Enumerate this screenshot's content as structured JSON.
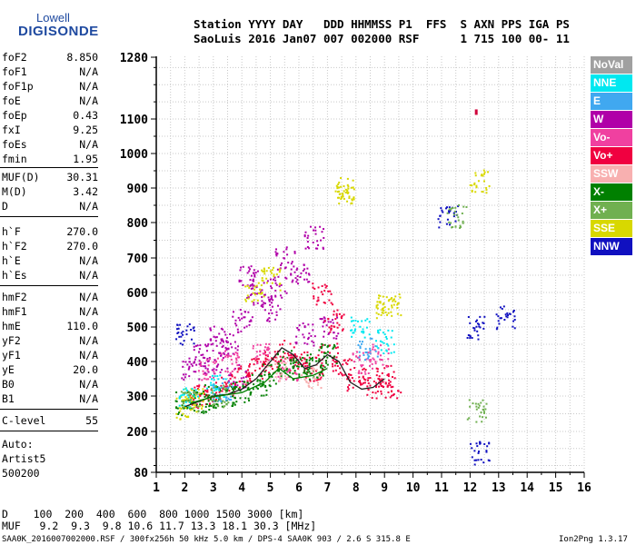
{
  "logo": {
    "line1": "Lowell",
    "line2": "DIGISONDE"
  },
  "header": {
    "row1": "Station YYYY DAY   DDD HHMMSS P1  FFS  S AXN PPS IGA PS",
    "row2": "SaoLuis 2016 Jan07 007 002000 RSF      1 715 100 00- 11"
  },
  "params": [
    {
      "k": "foF2",
      "v": "8.850"
    },
    {
      "k": "foF1",
      "v": "N/A"
    },
    {
      "k": "foF1p",
      "v": "N/A"
    },
    {
      "k": "foE",
      "v": "N/A"
    },
    {
      "k": "foEp",
      "v": "0.43"
    },
    {
      "k": "fxI",
      "v": "9.25"
    },
    {
      "k": "foEs",
      "v": "N/A"
    },
    {
      "k": "fmin",
      "v": "1.95"
    },
    {
      "k": "MUF(D)",
      "v": "30.31"
    },
    {
      "k": "M(D)",
      "v": "3.42"
    },
    {
      "k": "D",
      "v": "N/A"
    },
    {
      "k": "h`F",
      "v": "270.0"
    },
    {
      "k": "h`F2",
      "v": "270.0"
    },
    {
      "k": "h`E",
      "v": "N/A"
    },
    {
      "k": "h`Es",
      "v": "N/A"
    },
    {
      "k": "hmF2",
      "v": "N/A"
    },
    {
      "k": "hmF1",
      "v": "N/A"
    },
    {
      "k": "hmE",
      "v": "110.0"
    },
    {
      "k": "yF2",
      "v": "N/A"
    },
    {
      "k": "yF1",
      "v": "N/A"
    },
    {
      "k": "yE",
      "v": "20.0"
    },
    {
      "k": "B0",
      "v": "N/A"
    },
    {
      "k": "B1",
      "v": "N/A"
    },
    {
      "k": "C-level",
      "v": "55"
    }
  ],
  "auto": {
    "line1": "Auto:",
    "line2": "Artist5",
    "line3": "500200"
  },
  "legend": [
    {
      "label": "NoVal",
      "color": "#a0a0a0"
    },
    {
      "label": "NNE",
      "color": "#00e8f0"
    },
    {
      "label": "E",
      "color": "#40a8f0"
    },
    {
      "label": "W",
      "color": "#b000a8"
    },
    {
      "label": "Vo-",
      "color": "#f040a0"
    },
    {
      "label": "Vo+",
      "color": "#f00040"
    },
    {
      "label": "SSW",
      "color": "#f8b0b0"
    },
    {
      "label": "X-",
      "color": "#008000"
    },
    {
      "label": "X+",
      "color": "#70b050"
    },
    {
      "label": "SSE",
      "color": "#d8d800"
    },
    {
      "label": "NNW",
      "color": "#1010c0"
    }
  ],
  "bottom": {
    "row1": "D    100  200  400  600  800 1000 1500 3000 [km]",
    "row2": "MUF   9.2  9.3  9.8 10.6 11.7 13.3 18.1 30.3 [MHz]"
  },
  "footer": {
    "left": "SAA0K_2016007002000.RSF / 300fx256h 50 kHz 5.0 km / DPS-4 SAA0K 903 / 2.6 S 315.8 E",
    "right": "Ion2Png 1.3.17"
  },
  "chart_data": {
    "type": "scatter",
    "title": "",
    "xlabel": "",
    "ylabel": "",
    "xlim": [
      1,
      16
    ],
    "ylim": [
      80,
      1280
    ],
    "xticks": [
      1,
      2,
      3,
      4,
      5,
      6,
      7,
      8,
      9,
      10,
      11,
      12,
      13,
      14,
      15,
      16
    ],
    "yticks": [
      80,
      200,
      300,
      400,
      500,
      600,
      700,
      800,
      900,
      1000,
      1100,
      1280
    ],
    "grid": true,
    "y_scale": "nonlinear",
    "series": [
      {
        "name": "W",
        "color": "#b000a8",
        "points": [
          [
            2.2,
            380
          ],
          [
            3,
            400
          ],
          [
            3.5,
            450
          ],
          [
            4,
            520
          ],
          [
            4.5,
            600
          ],
          [
            5,
            550
          ],
          [
            5.5,
            700
          ],
          [
            6,
            650
          ],
          [
            6.5,
            760
          ],
          [
            7,
            500
          ],
          [
            3.2,
            470
          ],
          [
            2.6,
            420
          ],
          [
            4.2,
            650
          ],
          [
            5.2,
            620
          ],
          [
            6.2,
            480
          ],
          [
            3.8,
            360
          ]
        ]
      },
      {
        "name": "Vo+",
        "color": "#f00040",
        "points": [
          [
            2.5,
            300
          ],
          [
            3,
            310
          ],
          [
            3.5,
            330
          ],
          [
            4,
            360
          ],
          [
            4.5,
            380
          ],
          [
            5,
            400
          ],
          [
            5.5,
            430
          ],
          [
            6,
            400
          ],
          [
            6.5,
            380
          ],
          [
            7,
            420
          ],
          [
            7.5,
            380
          ],
          [
            8,
            350
          ],
          [
            8.5,
            330
          ],
          [
            9,
            360
          ],
          [
            9.2,
            330
          ],
          [
            7.2,
            520
          ],
          [
            6.8,
            600
          ]
        ]
      },
      {
        "name": "Vo-",
        "color": "#f040a0",
        "points": [
          [
            2.8,
            380
          ],
          [
            3.6,
            400
          ],
          [
            4.6,
            420
          ],
          [
            5.6,
            380
          ],
          [
            8.2,
            400
          ],
          [
            8.8,
            420
          ]
        ]
      },
      {
        "name": "X-",
        "color": "#008000",
        "points": [
          [
            2,
            280
          ],
          [
            2.5,
            285
          ],
          [
            3,
            300
          ],
          [
            3.5,
            305
          ],
          [
            4,
            310
          ],
          [
            4.5,
            330
          ],
          [
            5,
            360
          ],
          [
            5.5,
            400
          ],
          [
            6,
            380
          ],
          [
            6.5,
            390
          ],
          [
            7,
            420
          ]
        ]
      },
      {
        "name": "SSE",
        "color": "#d8d800",
        "points": [
          [
            2,
            270
          ],
          [
            2.3,
            290
          ],
          [
            7.5,
            880
          ],
          [
            7.6,
            900
          ],
          [
            9,
            560
          ],
          [
            9.2,
            565
          ],
          [
            4.4,
            610
          ],
          [
            5,
            640
          ],
          [
            12.3,
            920
          ]
        ]
      },
      {
        "name": "NNE",
        "color": "#00e8f0",
        "points": [
          [
            2.1,
            300
          ],
          [
            3.1,
            330
          ],
          [
            8.1,
            500
          ],
          [
            9,
            460
          ]
        ]
      },
      {
        "name": "E",
        "color": "#40a8f0",
        "points": [
          [
            3.3,
            320
          ],
          [
            8.4,
            440
          ]
        ]
      },
      {
        "name": "NNW",
        "color": "#1010c0",
        "points": [
          [
            2,
            480
          ],
          [
            11.2,
            820
          ],
          [
            12.2,
            500
          ],
          [
            12.3,
            140
          ],
          [
            13.2,
            530
          ]
        ]
      },
      {
        "name": "X+",
        "color": "#70b050",
        "points": [
          [
            2.2,
            290
          ],
          [
            3.2,
            300
          ],
          [
            11.5,
            820
          ],
          [
            12.2,
            260
          ]
        ]
      },
      {
        "name": "SSW",
        "color": "#f8b0b0",
        "points": [
          [
            5.2,
            380
          ],
          [
            6.4,
            360
          ]
        ]
      }
    ],
    "traces": [
      {
        "name": "trace-o",
        "color": "#202020",
        "points": [
          [
            2,
            270
          ],
          [
            2.5,
            285
          ],
          [
            3,
            300
          ],
          [
            3.5,
            305
          ],
          [
            4,
            320
          ],
          [
            4.5,
            350
          ],
          [
            5,
            400
          ],
          [
            5.4,
            440
          ],
          [
            5.8,
            420
          ],
          [
            6.2,
            380
          ],
          [
            6.6,
            390
          ],
          [
            7,
            420
          ],
          [
            7.4,
            400
          ],
          [
            7.8,
            340
          ],
          [
            8.2,
            320
          ],
          [
            8.6,
            325
          ],
          [
            9,
            350
          ]
        ]
      },
      {
        "name": "trace-x",
        "color": "#008000",
        "points": [
          [
            2.2,
            280
          ],
          [
            3,
            298
          ],
          [
            4,
            310
          ],
          [
            4.8,
            340
          ],
          [
            5.3,
            380
          ],
          [
            5.8,
            350
          ],
          [
            6.5,
            360
          ],
          [
            7,
            380
          ]
        ]
      }
    ],
    "outliers": [
      [
        12.2,
        1120
      ]
    ]
  }
}
